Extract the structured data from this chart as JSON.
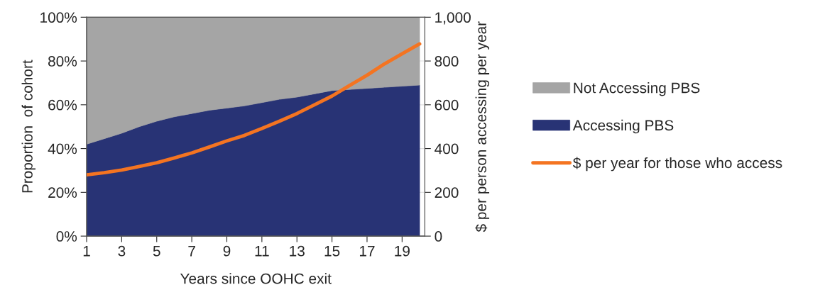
{
  "chart_data": {
    "type": "area",
    "stacked": true,
    "xlabel": "Years since OOHC exit",
    "ylabel": "Proportion  of cohort",
    "y2label": "$ per person accessing per year",
    "x": [
      1,
      2,
      3,
      4,
      5,
      6,
      7,
      8,
      9,
      10,
      11,
      12,
      13,
      14,
      15,
      16,
      17,
      18,
      19,
      20
    ],
    "xlim": [
      1,
      20.3
    ],
    "xticks": [
      1,
      3,
      5,
      7,
      9,
      11,
      13,
      15,
      17,
      19
    ],
    "ylim": [
      0,
      100
    ],
    "yticks": [
      {
        "value": 0,
        "label": "0%"
      },
      {
        "value": 20,
        "label": "20%"
      },
      {
        "value": 40,
        "label": "40%"
      },
      {
        "value": 60,
        "label": "60%"
      },
      {
        "value": 80,
        "label": "80%"
      },
      {
        "value": 100,
        "label": "100%"
      }
    ],
    "y2lim": [
      0,
      1000
    ],
    "y2ticks": [
      0,
      200,
      400,
      600,
      800,
      {
        "value": 1000,
        "label": "1,000"
      }
    ],
    "grid": "y",
    "legend": "right",
    "series": [
      {
        "name": "Accessing PBS",
        "color": "#283375",
        "values": [
          42,
          44.5,
          47,
          50,
          52.5,
          54.5,
          56,
          57.5,
          58.5,
          59.5,
          61,
          62.5,
          63.5,
          65,
          66.5,
          67,
          67.5,
          68,
          68.5,
          69
        ]
      },
      {
        "name": "Not Accessing PBS",
        "color": "#a5a5a5",
        "values": [
          58,
          55.5,
          53,
          50,
          47.5,
          45.5,
          44,
          42.5,
          41.5,
          40.5,
          39,
          37.5,
          36.5,
          35,
          33.5,
          33,
          32.5,
          32,
          31.5,
          31
        ]
      },
      {
        "name": "$ per year for those who access",
        "type": "line",
        "axis": "y2",
        "color": "#f47421",
        "values": [
          280,
          290,
          302,
          318,
          335,
          357,
          380,
          407,
          435,
          460,
          492,
          525,
          560,
          600,
          640,
          688,
          735,
          787,
          833,
          878
        ]
      }
    ]
  }
}
